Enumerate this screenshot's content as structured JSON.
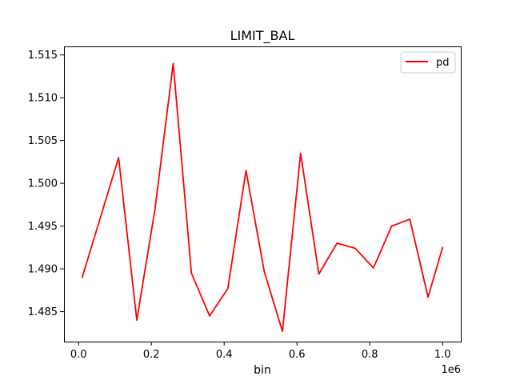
{
  "chart_data": {
    "type": "line",
    "title": "LIMIT_BAL",
    "xlabel": "bin",
    "ylabel": "",
    "x_offset_label": "1e6",
    "x_scale": 1000000,
    "xlim": [
      -40000,
      1050000
    ],
    "ylim": [
      1.4815,
      1.516
    ],
    "x_ticks": [
      0,
      200000,
      400000,
      600000,
      800000,
      1000000
    ],
    "x_tick_labels": [
      "0.0",
      "0.2",
      "0.4",
      "0.6",
      "0.8",
      "1.0"
    ],
    "y_ticks": [
      1.485,
      1.49,
      1.495,
      1.5,
      1.505,
      1.51,
      1.515
    ],
    "y_tick_labels": [
      "1.485",
      "1.490",
      "1.495",
      "1.500",
      "1.505",
      "1.510",
      "1.515"
    ],
    "grid": false,
    "legend_position": "top-right",
    "series": [
      {
        "name": "pd",
        "color": "#ff0000",
        "x": [
          10000,
          60000,
          110000,
          160000,
          210000,
          260000,
          310000,
          360000,
          410000,
          460000,
          510000,
          560000,
          610000,
          660000,
          710000,
          760000,
          810000,
          860000,
          910000,
          960000,
          1000000
        ],
        "y": [
          1.489,
          1.496,
          1.503,
          1.484,
          1.497,
          1.514,
          1.4895,
          1.4845,
          1.4877,
          1.5015,
          1.4897,
          1.4827,
          1.5035,
          1.4894,
          1.493,
          1.4924,
          1.4901,
          1.495,
          1.4958,
          1.4867,
          1.4925
        ]
      }
    ]
  }
}
